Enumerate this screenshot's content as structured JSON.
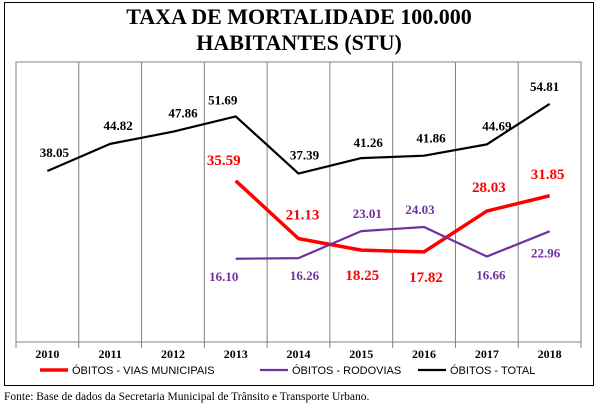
{
  "chart_data": {
    "type": "line",
    "title_lines": [
      "TAXA DE MORTALIDADE 100.000",
      "HABITANTES (STU)"
    ],
    "categories": [
      "2010",
      "2011",
      "2012",
      "2013",
      "2014",
      "2015",
      "2016",
      "2017",
      "2018"
    ],
    "grid": "vertical",
    "legend_position": "bottom",
    "series": [
      {
        "name": "ÓBITOS - VIAS MUNICIPAIS",
        "color": "#ff0000",
        "values": [
          null,
          null,
          null,
          35.59,
          21.13,
          18.25,
          17.82,
          28.03,
          31.85
        ],
        "labels": [
          "",
          "",
          "",
          "35.59",
          "21.13",
          "18.25",
          "17.82",
          "28.03",
          "31.85"
        ]
      },
      {
        "name": "ÓBITOS - RODOVIAS",
        "color": "#7030a0",
        "values": [
          null,
          null,
          null,
          16.1,
          16.26,
          23.01,
          24.03,
          16.66,
          22.96
        ],
        "labels": [
          "",
          "",
          "",
          "16.10",
          "16.26",
          "23.01",
          "24.03",
          "16.66",
          "22.96"
        ]
      },
      {
        "name": "ÓBITOS - TOTAL",
        "color": "#000000",
        "values": [
          38.05,
          44.82,
          47.86,
          51.69,
          37.39,
          41.26,
          41.86,
          44.69,
          54.81
        ],
        "labels": [
          "38.05",
          "44.82",
          "47.86",
          "51.69",
          "37.39",
          "41.26",
          "41.86",
          "44.69",
          "54.81"
        ]
      }
    ]
  },
  "source": "Fonte: Base de dados da Secretaria Municipal de Trânsito e Transporte Urbano."
}
